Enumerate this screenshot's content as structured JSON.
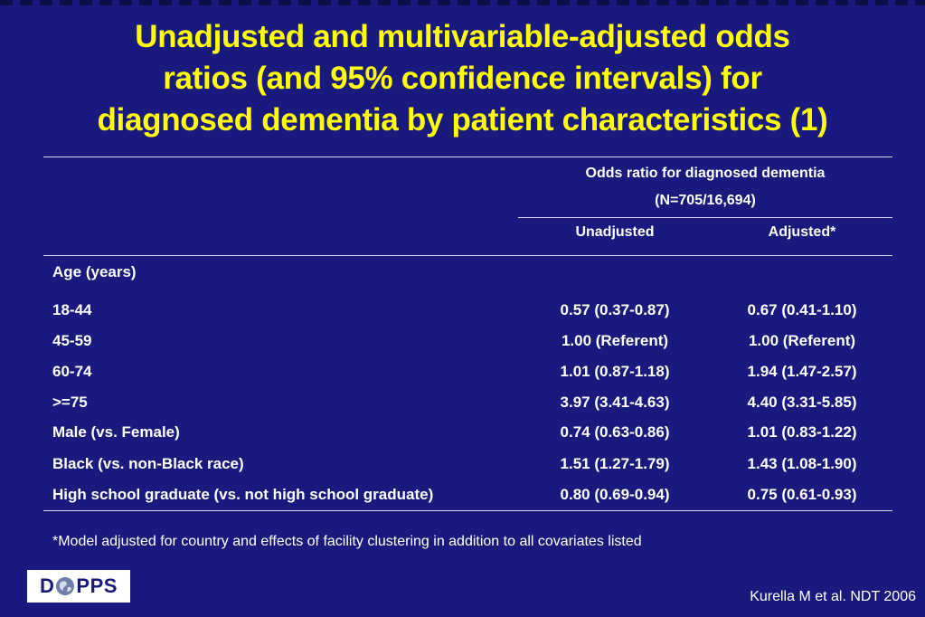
{
  "title": {
    "line1": "Unadjusted and multivariable-adjusted odds",
    "line2": "ratios (and 95% confidence intervals) for",
    "line3": "diagnosed dementia by patient characteristics (1)"
  },
  "table": {
    "group_header": "Odds ratio for diagnosed dementia",
    "group_subheader": "(N=705/16,694)",
    "col_unadjusted": "Unadjusted",
    "col_adjusted": "Adjusted*",
    "section_label": "Age (years)",
    "rows": [
      {
        "label": "18-44",
        "unadjusted": "0.57 (0.37-0.87)",
        "adjusted": "0.67 (0.41-1.10)"
      },
      {
        "label": "45-59",
        "unadjusted": "1.00 (Referent)",
        "adjusted": "1.00 (Referent)"
      },
      {
        "label": "60-74",
        "unadjusted": "1.01 (0.87-1.18)",
        "adjusted": "1.94 (1.47-2.57)"
      },
      {
        "label": ">=75",
        "unadjusted": "3.97 (3.41-4.63)",
        "adjusted": "4.40 (3.31-5.85)"
      },
      {
        "label": "Male (vs. Female)",
        "unadjusted": "0.74 (0.63-0.86)",
        "adjusted": "1.01 (0.83-1.22)"
      },
      {
        "label": "Black (vs. non-Black race)",
        "unadjusted": "1.51 (1.27-1.79)",
        "adjusted": "1.43 (1.08-1.90)"
      },
      {
        "label": "High school graduate (vs. not high school graduate)",
        "unadjusted": "0.80 (0.69-0.94)",
        "adjusted": "0.75 (0.61-0.93)"
      }
    ]
  },
  "footnote": "*Model adjusted for country and effects of facility clustering in addition to all covariates listed",
  "logo": {
    "left": "D",
    "right": "PPS"
  },
  "citation": "Kurella M et al. NDT 2006",
  "colors": {
    "background": "#1a1a7e",
    "title": "#ffff00",
    "text": "#ffffff"
  }
}
